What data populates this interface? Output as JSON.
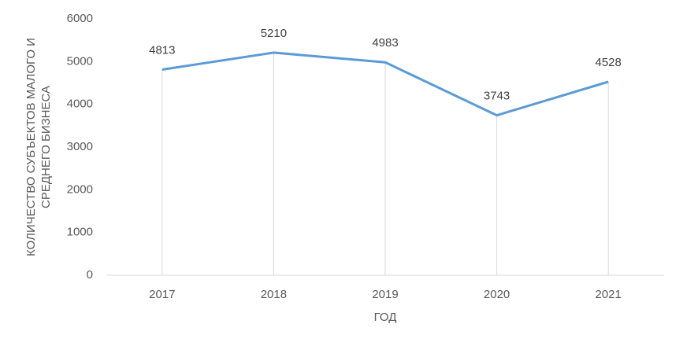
{
  "chart_data": {
    "type": "line",
    "categories": [
      "2017",
      "2018",
      "2019",
      "2020",
      "2021"
    ],
    "series": [
      {
        "color": "#5b9bd5",
        "values": [
          4813,
          5210,
          4983,
          3743,
          4528
        ]
      }
    ],
    "ylim": [
      0,
      6000
    ],
    "yticks": [
      0,
      1000,
      2000,
      3000,
      4000,
      5000,
      6000
    ],
    "x_label": "ГОД",
    "y_label": [
      "КОЛИЧЕСТВО СУБЪЕКТОВ МАЛОГО И",
      "СРЕДНЕГО БИЗНЕСА"
    ],
    "drop_lines": true
  }
}
